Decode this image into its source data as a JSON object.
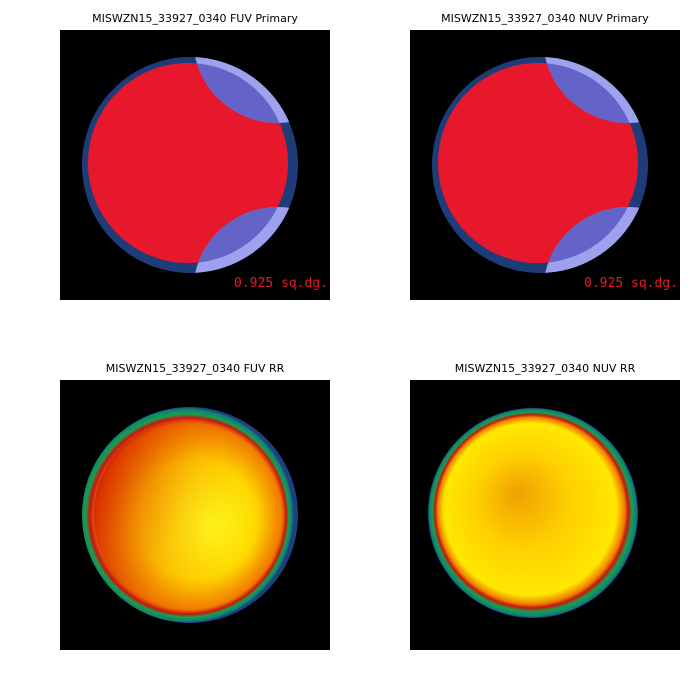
{
  "panels": [
    {
      "title": "MISWZN15_33927_0340 FUV Primary",
      "annotation": "0.925 sq.dg."
    },
    {
      "title": "MISWZN15_33927_0340 NUV Primary",
      "annotation": "0.925 sq.dg."
    },
    {
      "title": "MISWZN15_33927_0340 FUV RR"
    },
    {
      "title": "MISWZN15_33927_0340 NUV RR"
    }
  ]
}
